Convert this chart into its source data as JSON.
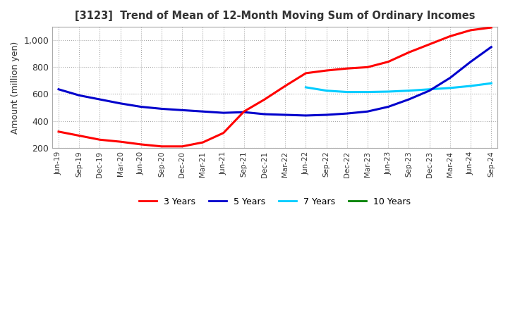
{
  "title": "[3123]  Trend of Mean of 12-Month Moving Sum of Ordinary Incomes",
  "ylabel": "Amount (million yen)",
  "ylim": [
    200,
    1100
  ],
  "yticks": [
    200,
    400,
    600,
    800,
    1000
  ],
  "ytick_labels": [
    "200",
    "400",
    "600",
    "800",
    "1,000"
  ],
  "colors": {
    "3yr": "#ff0000",
    "5yr": "#0000cc",
    "7yr": "#00ccff",
    "10yr": "#008000"
  },
  "legend_labels": [
    "3 Years",
    "5 Years",
    "7 Years",
    "10 Years"
  ],
  "x_labels": [
    "Jun-19",
    "Sep-19",
    "Dec-19",
    "Mar-20",
    "Jun-20",
    "Sep-20",
    "Dec-20",
    "Mar-21",
    "Jun-21",
    "Sep-21",
    "Dec-21",
    "Mar-22",
    "Jun-22",
    "Sep-22",
    "Dec-22",
    "Mar-23",
    "Jun-23",
    "Sep-23",
    "Dec-23",
    "Mar-24",
    "Jun-24",
    "Sep-24"
  ],
  "data_3yr": [
    320,
    290,
    260,
    245,
    225,
    210,
    210,
    240,
    310,
    470,
    560,
    660,
    755,
    775,
    790,
    800,
    840,
    910,
    970,
    1030,
    1075,
    1095
  ],
  "data_5yr": [
    635,
    590,
    560,
    530,
    505,
    490,
    480,
    470,
    460,
    465,
    450,
    445,
    440,
    445,
    455,
    470,
    505,
    560,
    625,
    720,
    840,
    950
  ],
  "data_7yr": [
    null,
    null,
    null,
    null,
    null,
    null,
    null,
    null,
    null,
    null,
    null,
    null,
    650,
    625,
    615,
    615,
    618,
    625,
    635,
    645,
    660,
    680
  ],
  "data_10yr": [
    null,
    null,
    null,
    null,
    null,
    null,
    null,
    null,
    null,
    null,
    null,
    null,
    null,
    null,
    null,
    null,
    null,
    null,
    null,
    null,
    null,
    null
  ],
  "grid_color": "#aaaaaa",
  "bg_color": "#ffffff"
}
